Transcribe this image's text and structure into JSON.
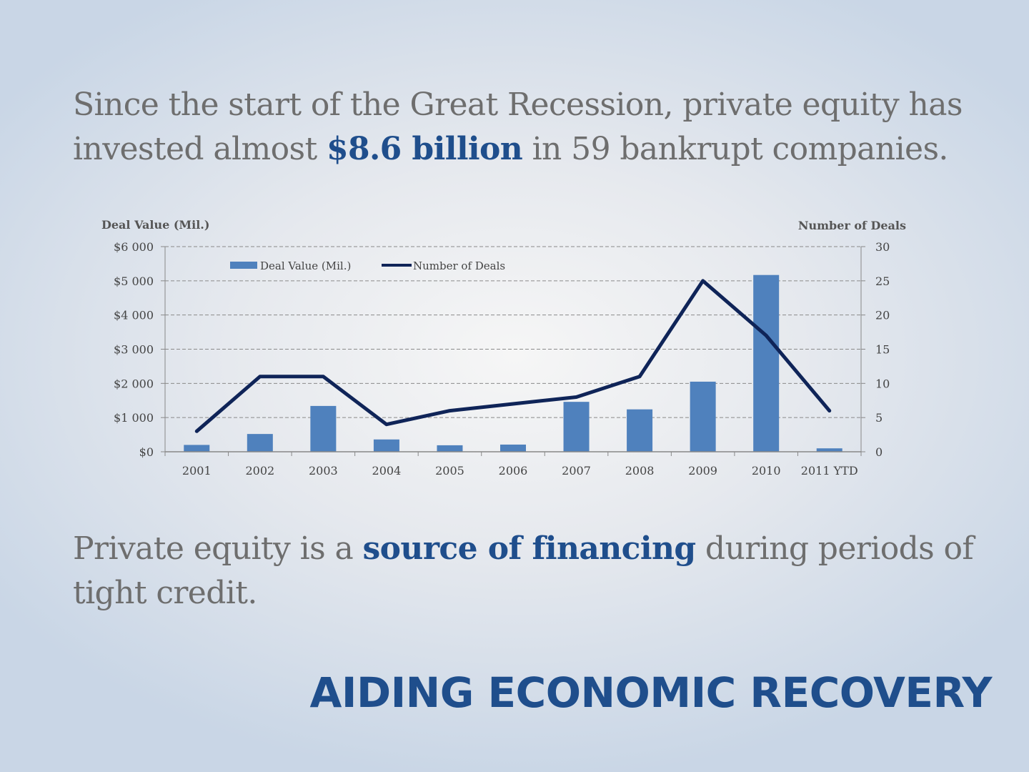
{
  "intro": {
    "part1": "Since the start of the Great Recession, private equity has invested almost ",
    "highlight": "$8.6 billion",
    "part2": " in 59 bankrupt companies."
  },
  "closing": {
    "part1": "Private equity is a ",
    "highlight": "source of financing",
    "part2": " during periods of tight credit."
  },
  "footer_title": "AIDING ECONOMIC RECOVERY",
  "colors": {
    "bar": "#4f81bd",
    "line": "#0f2458",
    "accent": "#1f4e8c"
  },
  "chart_data": {
    "type": "bar",
    "categories": [
      "2001",
      "2002",
      "2003",
      "2004",
      "2005",
      "2006",
      "2007",
      "2008",
      "2009",
      "2010",
      "2011 YTD"
    ],
    "series": [
      {
        "name": "Deal Value (Mil.)",
        "type": "bar",
        "axis": "left",
        "values": [
          200,
          520,
          1340,
          360,
          190,
          210,
          1460,
          1240,
          2050,
          5170,
          100
        ]
      },
      {
        "name": "Number of Deals",
        "type": "line",
        "axis": "right",
        "values": [
          3,
          11,
          11,
          4,
          6,
          7,
          8,
          11,
          25,
          17,
          6
        ]
      }
    ],
    "ylabel": "Deal Value (Mil.)",
    "y2label": "Number of Deals",
    "ylim": [
      0,
      6000
    ],
    "y2lim": [
      0,
      30
    ],
    "yticks": [
      "$0",
      "$1 000",
      "$2 000",
      "$3 000",
      "$4 000",
      "$5 000",
      "$6 000"
    ],
    "y2ticks": [
      "0",
      "5",
      "10",
      "15",
      "20",
      "25",
      "30"
    ],
    "grid": true,
    "legend": "top-left"
  }
}
